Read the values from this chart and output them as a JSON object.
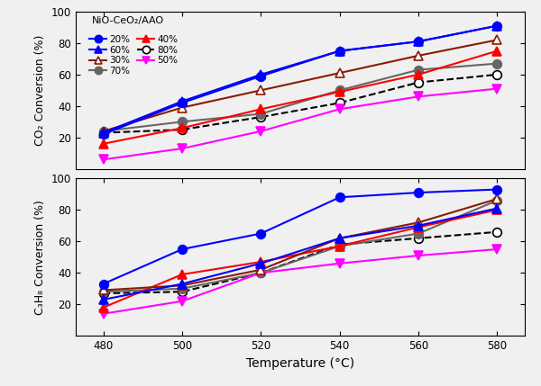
{
  "temperatures": [
    480,
    500,
    520,
    540,
    560,
    580
  ],
  "co2_data": {
    "20%": [
      22,
      42,
      59,
      75,
      81,
      91
    ],
    "30%": [
      24,
      39,
      50,
      61,
      72,
      82
    ],
    "40%": [
      16,
      26,
      38,
      49,
      60,
      75
    ],
    "50%": [
      6,
      13,
      24,
      38,
      46,
      51
    ],
    "60%": [
      23,
      43,
      60,
      75,
      81,
      91
    ],
    "70%": [
      24,
      30,
      35,
      50,
      63,
      67
    ],
    "80%": [
      23,
      25,
      33,
      42,
      55,
      60
    ]
  },
  "c3h8_data": {
    "20%": [
      33,
      55,
      65,
      88,
      91,
      93
    ],
    "30%": [
      29,
      32,
      42,
      62,
      72,
      87
    ],
    "40%": [
      18,
      39,
      47,
      57,
      69,
      80
    ],
    "50%": [
      14,
      22,
      40,
      46,
      51,
      55
    ],
    "60%": [
      23,
      33,
      46,
      62,
      70,
      81
    ],
    "70%": [
      28,
      30,
      40,
      57,
      65,
      86
    ],
    "80%": [
      27,
      28,
      40,
      58,
      62,
      66
    ]
  },
  "series_styles": {
    "20%": {
      "color": "blue",
      "marker": "o",
      "filled": true,
      "linestyle": "-",
      "markersize": 7
    },
    "30%": {
      "color": "#8B1A00",
      "marker": "^",
      "filled": false,
      "linestyle": "-",
      "markersize": 7
    },
    "40%": {
      "color": "red",
      "marker": "^",
      "filled": true,
      "linestyle": "-",
      "markersize": 7
    },
    "50%": {
      "color": "magenta",
      "marker": "v",
      "filled": true,
      "linestyle": "-",
      "markersize": 7
    },
    "60%": {
      "color": "blue",
      "marker": "^",
      "filled": true,
      "linestyle": "-",
      "markersize": 7
    },
    "70%": {
      "color": "#666666",
      "marker": "o",
      "filled": true,
      "linestyle": "-",
      "markersize": 7
    },
    "80%": {
      "color": "black",
      "marker": "o",
      "filled": false,
      "linestyle": "--",
      "markersize": 7
    }
  },
  "legend_title": "NiO-CeO₂/AAO",
  "xlabel": "Temperature (°C)",
  "ylabel_top": "CO₂ Conversion (%)",
  "ylabel_bottom": "C₃H₈ Conversion (%)",
  "ylim": [
    0,
    100
  ],
  "yticks": [
    20,
    40,
    60,
    80,
    100
  ],
  "bg_color": "#f0f0f0"
}
